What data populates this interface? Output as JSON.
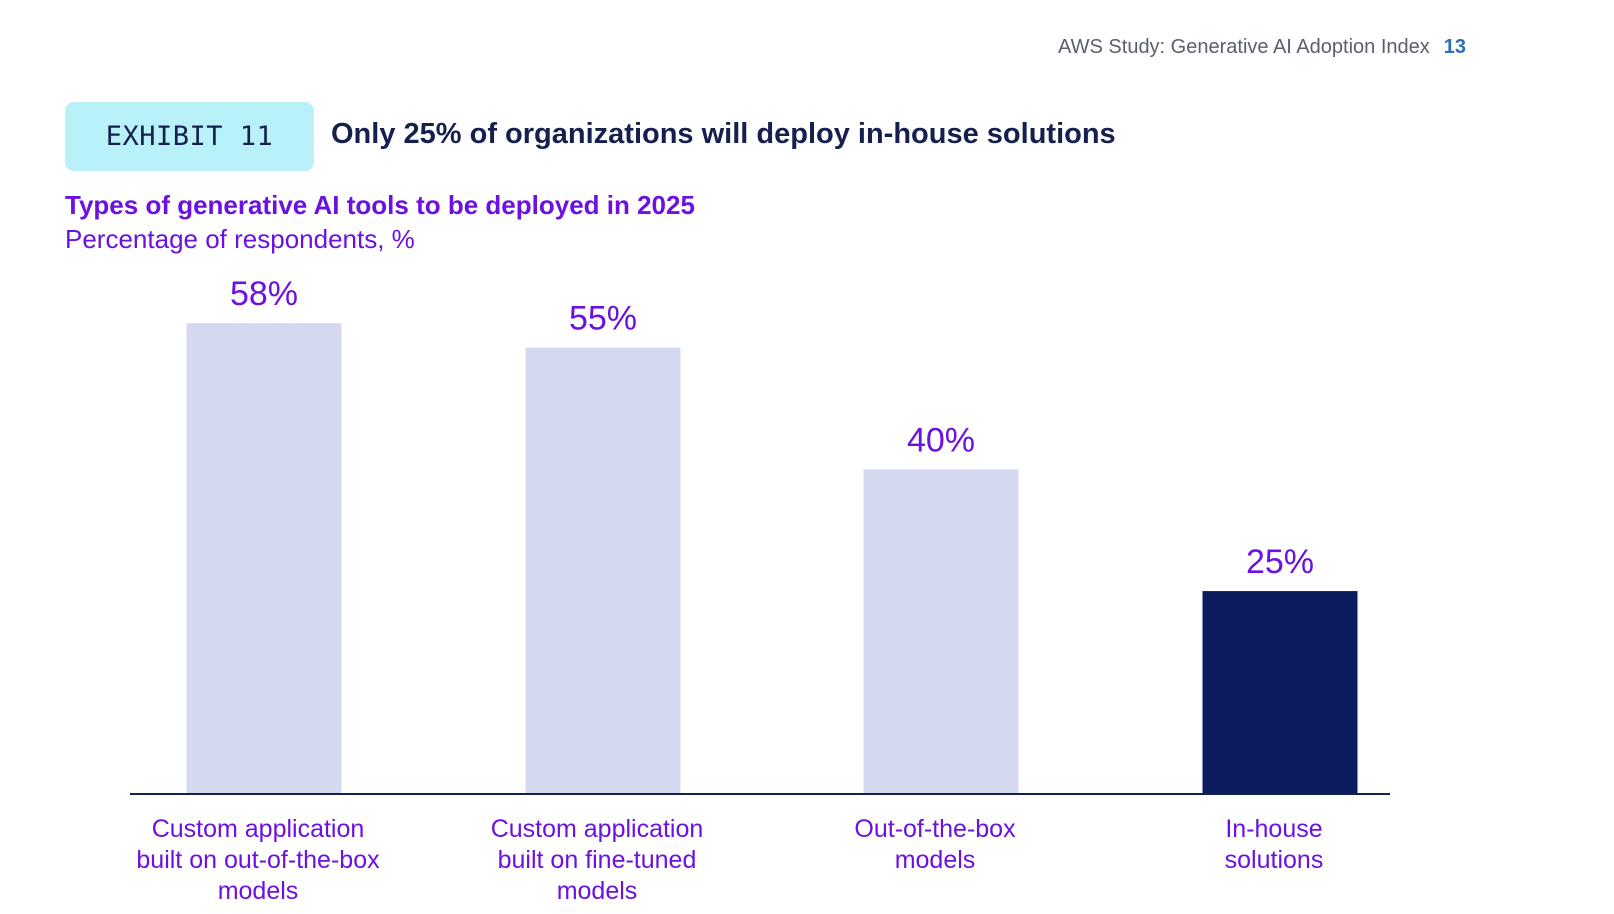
{
  "header": {
    "study_title": "AWS Study: Generative AI Adoption Index",
    "page_number": "13"
  },
  "exhibit": {
    "label": "EXHIBIT 11",
    "title": "Only 25% of organizations will deploy in-house solutions"
  },
  "colors": {
    "bar_default": "#d4d9ef",
    "bar_highlight": "#0b1c5e",
    "label_purple": "#6b11e0",
    "axis": "#16204e"
  },
  "chart_data": {
    "type": "bar",
    "title": "Types of generative AI tools to be deployed in 2025",
    "subtitle": "Percentage of respondents, %",
    "xlabel": "",
    "ylabel": "",
    "ylim": [
      0,
      60
    ],
    "grid": false,
    "categories": [
      [
        "Custom application",
        "built on out-of-the-box",
        "models"
      ],
      [
        "Custom application",
        "built on fine-tuned",
        "models"
      ],
      [
        "Out-of-the-box",
        "models"
      ],
      [
        "In-house",
        "solutions"
      ]
    ],
    "values": [
      58,
      55,
      40,
      25
    ],
    "value_labels": [
      "58%",
      "55%",
      "40%",
      "25%"
    ],
    "highlight_index": 3
  }
}
